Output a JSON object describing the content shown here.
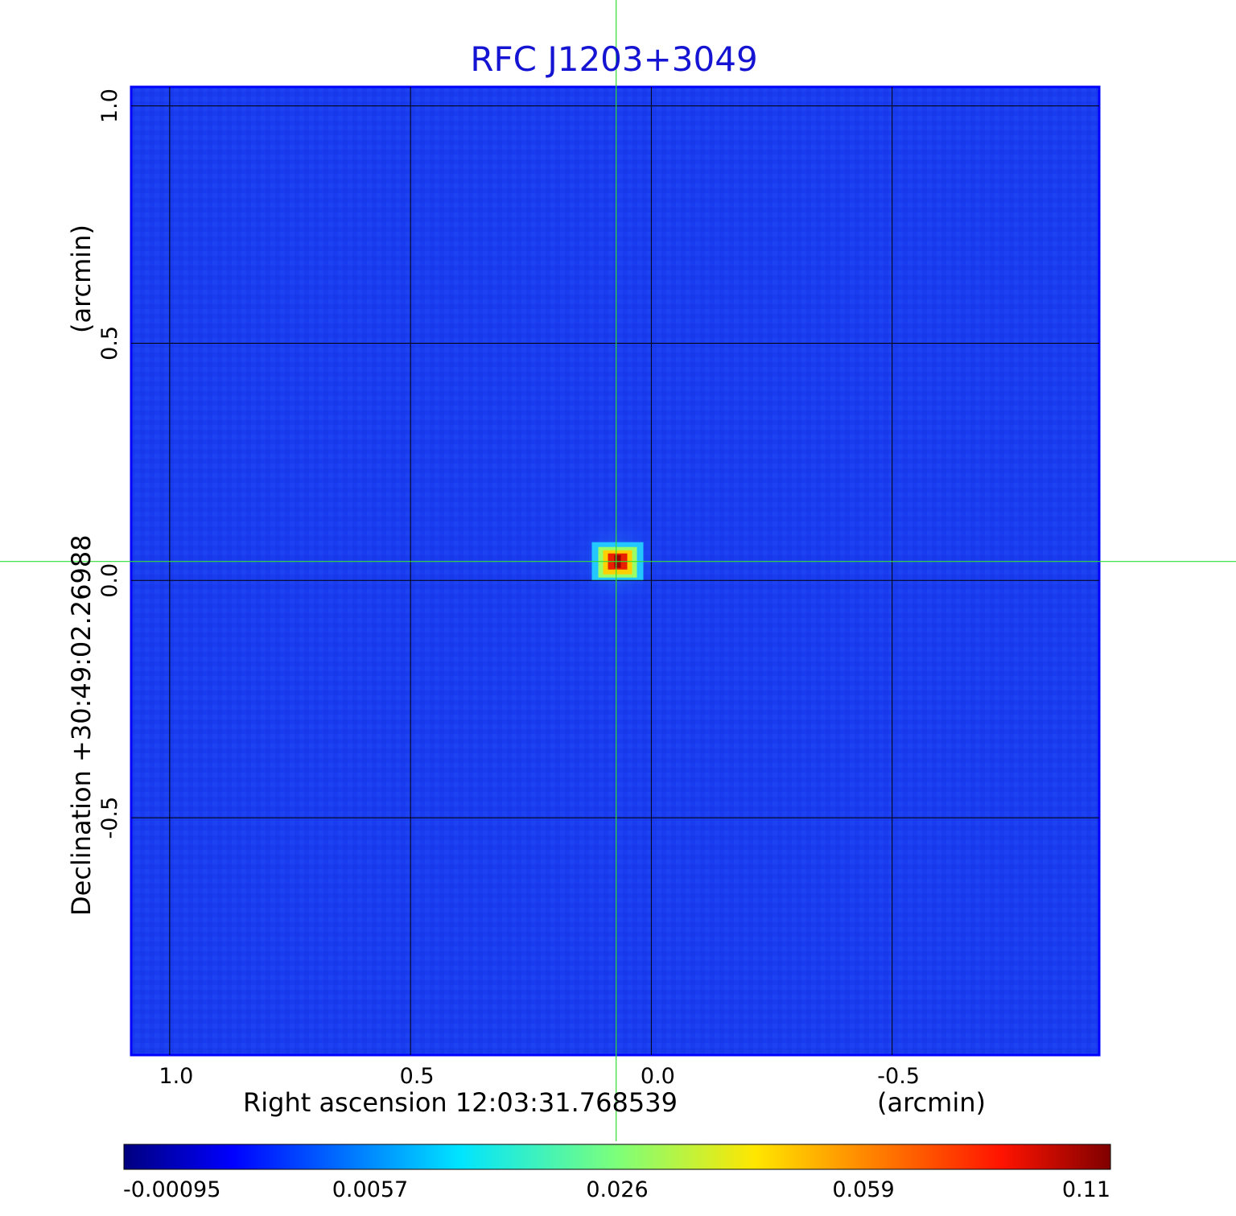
{
  "chart_data": {
    "type": "heatmap",
    "title": "RFC J1203+3049",
    "xlabel": "Right ascension  12:03:31.768539",
    "xunit": "(arcmin)",
    "ylabel": "Declination  +30:49:02.26988",
    "yunit": "(arcmin)",
    "x_ticks": [
      1.0,
      0.5,
      0.0,
      -0.5
    ],
    "x_tick_labels": [
      "1.0",
      "0.5",
      "0.0",
      "-0.5"
    ],
    "y_ticks": [
      1.0,
      0.5,
      0.0,
      -0.5
    ],
    "y_tick_labels": [
      "1.0",
      "0.5",
      "0.0",
      "-0.5"
    ],
    "xlim": [
      1.08,
      -0.93
    ],
    "ylim": [
      -1.0,
      1.04
    ],
    "grid": true,
    "crosshair": {
      "x": 0.073,
      "y": 0.04
    },
    "source_peak": {
      "x": 0.07,
      "y": 0.04,
      "value": 0.11
    },
    "colorbar": {
      "ticks": [
        -0.00095,
        0.0057,
        0.026,
        0.059,
        0.11
      ],
      "tick_labels": [
        "-0.00095",
        "0.0057",
        "0.026",
        "0.059",
        "0.11"
      ],
      "colormap": "jet"
    },
    "colors": {
      "title": "#1414d2",
      "background_field": "#1a3cf0",
      "crosshair": "#33dd33",
      "grid": "#000000"
    }
  }
}
